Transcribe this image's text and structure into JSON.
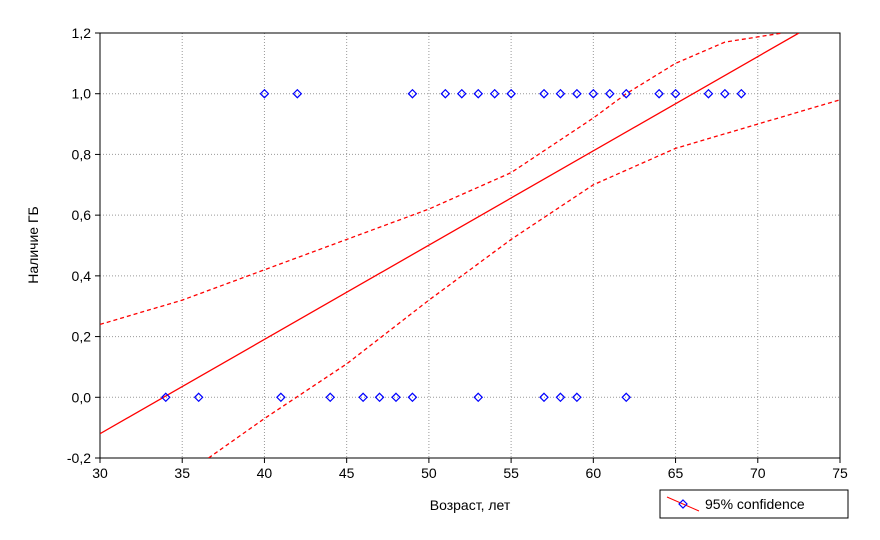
{
  "chart_data": {
    "type": "scatter",
    "title": "",
    "xlabel": "Возраст, лет",
    "ylabel": "Наличие ГБ",
    "xlim": [
      30,
      75
    ],
    "ylim": [
      -0.2,
      1.2
    ],
    "x_ticks": [
      30,
      35,
      40,
      45,
      50,
      55,
      60,
      65,
      70,
      75
    ],
    "x_tick_labels": [
      "30",
      "35",
      "40",
      "45",
      "50",
      "55",
      "60",
      "65",
      "70",
      "75"
    ],
    "y_ticks": [
      -0.2,
      0.0,
      0.2,
      0.4,
      0.6,
      0.8,
      1.0,
      1.2
    ],
    "y_tick_labels": [
      "-0,2",
      "0,0",
      "0,2",
      "0,4",
      "0,6",
      "0,8",
      "1,0",
      "1,2"
    ],
    "grid": true,
    "legend": {
      "position": "bottom-right",
      "label": "95% confidence"
    },
    "colors": {
      "points": "#0000ff",
      "fit": "#ff0000",
      "confidence": "#ff0000",
      "grid": "#999999"
    },
    "series": [
      {
        "kind": "points",
        "marker": "diamond-open",
        "x": [
          40,
          42,
          49,
          51,
          52,
          53,
          54,
          55,
          57,
          58,
          59,
          60,
          61,
          62,
          64,
          65,
          67,
          68,
          69,
          34,
          36,
          41,
          44,
          46,
          47,
          48,
          49,
          53,
          57,
          58,
          59,
          62
        ],
        "y": [
          1,
          1,
          1,
          1,
          1,
          1,
          1,
          1,
          1,
          1,
          1,
          1,
          1,
          1,
          1,
          1,
          1,
          1,
          1,
          0,
          0,
          0,
          0,
          0,
          0,
          0,
          0,
          0,
          0,
          0,
          0,
          0
        ]
      },
      {
        "kind": "fit_line",
        "x": [
          30,
          72.5
        ],
        "y": [
          -0.12,
          1.2
        ]
      },
      {
        "kind": "upper_confidence",
        "x": [
          30,
          35,
          40,
          45,
          50,
          55,
          60,
          62,
          65,
          68,
          71.5
        ],
        "y": [
          0.24,
          0.32,
          0.42,
          0.52,
          0.62,
          0.74,
          0.92,
          1.0,
          1.1,
          1.17,
          1.2
        ]
      },
      {
        "kind": "lower_confidence",
        "x": [
          36.6,
          40,
          45,
          50,
          55,
          60,
          65,
          70,
          75
        ],
        "y": [
          -0.2,
          -0.07,
          0.11,
          0.32,
          0.52,
          0.7,
          0.82,
          0.9,
          0.98
        ]
      }
    ]
  }
}
